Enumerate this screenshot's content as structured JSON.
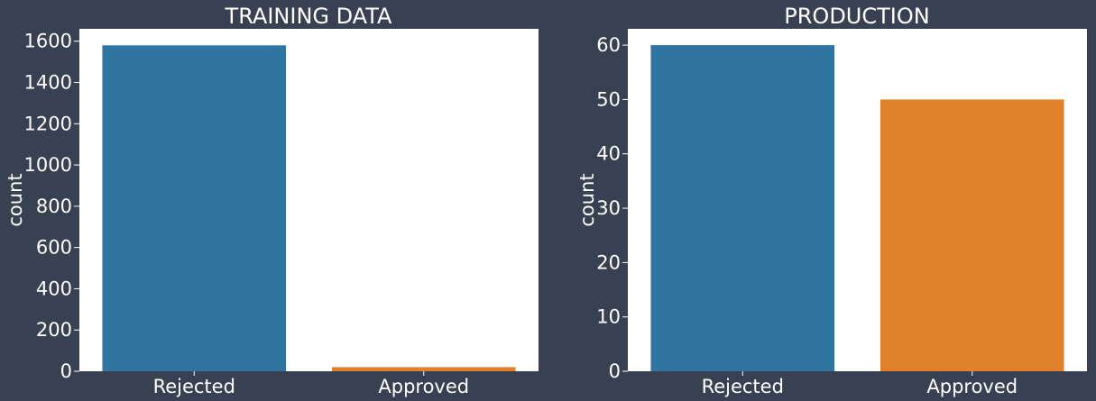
{
  "chart_data": [
    {
      "type": "bar",
      "title": "TRAINING DATA",
      "xlabel": "",
      "ylabel": "count",
      "categories": [
        "Rejected",
        "Approved"
      ],
      "values": [
        1580,
        20
      ],
      "colors": [
        "#3274a1",
        "#e1812c"
      ],
      "ylim": [
        0,
        1660
      ],
      "yticks": [
        0,
        200,
        400,
        600,
        800,
        1000,
        1200,
        1400,
        1600
      ],
      "grid": false,
      "legend": "none"
    },
    {
      "type": "bar",
      "title": "PRODUCTION",
      "xlabel": "",
      "ylabel": "count",
      "categories": [
        "Rejected",
        "Approved"
      ],
      "values": [
        60,
        50
      ],
      "colors": [
        "#3274a1",
        "#e1812c"
      ],
      "ylim": [
        0,
        63
      ],
      "yticks": [
        0,
        10,
        20,
        30,
        40,
        50,
        60
      ],
      "grid": false,
      "legend": "none"
    }
  ],
  "colors": {
    "background": "#384152",
    "plot_background": "#ffffff",
    "text": "#ffffff"
  }
}
